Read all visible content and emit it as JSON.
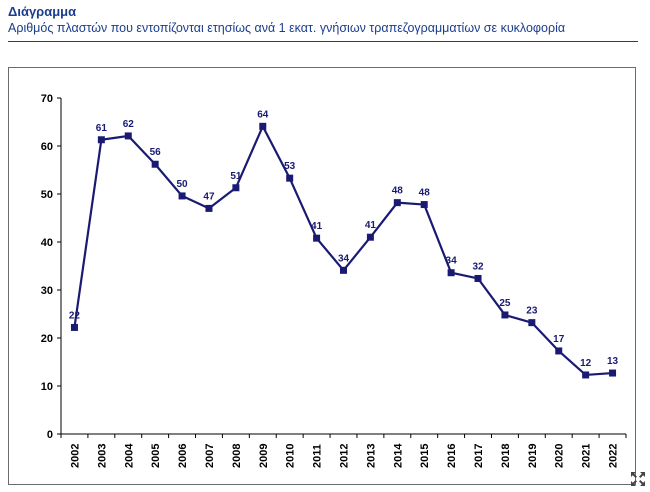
{
  "header": {
    "title": "Διάγραμμα",
    "subtitle": "Αριθμός πλαστών που εντοπίζονται ετησίως ανά 1 εκατ. γνήσιων τραπεζογραμματίων σε κυκλοφορία"
  },
  "icons": {
    "expand": "expand-arrows-icon"
  },
  "colors": {
    "series": "#1a1a73",
    "text_accent": "#1b3d8f",
    "axis": "#000000"
  },
  "chart_data": {
    "type": "line",
    "title": "",
    "xlabel": "",
    "ylabel": "",
    "categories": [
      "2002",
      "2003",
      "2004",
      "2005",
      "2006",
      "2007",
      "2008",
      "2009",
      "2010",
      "2011",
      "2012",
      "2013",
      "2014",
      "2015",
      "2016",
      "2017",
      "2018",
      "2019",
      "2020",
      "2021",
      "2022"
    ],
    "values": [
      22,
      61,
      62,
      56,
      50,
      47,
      51,
      64,
      53,
      41,
      34,
      41,
      48,
      48,
      34,
      32,
      25,
      23,
      17,
      12,
      13
    ],
    "plotted_values": [
      22.2,
      61.3,
      62.1,
      56.2,
      49.6,
      47.0,
      51.3,
      64.1,
      53.3,
      40.8,
      34.1,
      41.0,
      48.2,
      47.8,
      33.6,
      32.4,
      24.8,
      23.2,
      17.3,
      12.3,
      12.7
    ],
    "ylim": [
      0,
      70
    ],
    "yticks": [
      0,
      10,
      20,
      30,
      40,
      50,
      60,
      70
    ],
    "grid": false,
    "legend": "none"
  }
}
